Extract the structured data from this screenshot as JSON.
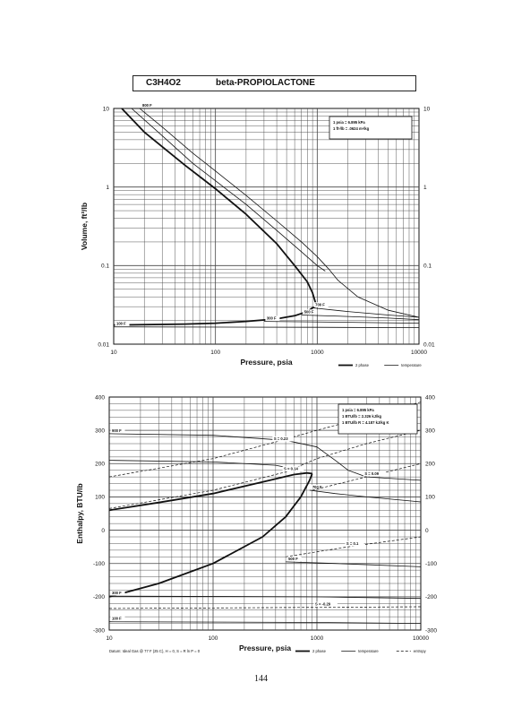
{
  "header": {
    "formula": "C3H4O2",
    "name": "beta-PROPIOLACTONE"
  },
  "page_number": "144",
  "colors": {
    "line": "#111111",
    "grid": "#444444"
  },
  "chart_data": [
    {
      "type": "line",
      "xscale": "log",
      "yscale": "log",
      "xlim": [
        10,
        10000
      ],
      "ylim": [
        0.01,
        10
      ],
      "xlabel": "Pressure,  psia",
      "ylabel": "Volume, ft^3/lb",
      "xticks": [
        "10",
        "100",
        "1000",
        "10000"
      ],
      "yticks_left": [
        "0.01",
        "0.1",
        "1",
        "10"
      ],
      "yticks_right": [
        "0.01",
        "0.1",
        "1",
        "10"
      ],
      "grid": true,
      "conversions": [
        "1 psia  =  6.895 kPa",
        "1 ft^3/lb  =  .0624 m^3/kg"
      ],
      "legend": [
        "2 phase",
        "temperature"
      ],
      "legend_position": "bottom-right",
      "series": [
        {
          "style": "2 phase",
          "curve": "saturated vapor",
          "points": [
            [
              12,
              10
            ],
            [
              20,
              5
            ],
            [
              50,
              1.9
            ],
            [
              100,
              0.95
            ],
            [
              200,
              0.45
            ],
            [
              400,
              0.19
            ],
            [
              600,
              0.1
            ],
            [
              800,
              0.062
            ],
            [
              900,
              0.045
            ],
            [
              960,
              0.034
            ],
            [
              980,
              0.03
            ]
          ]
        },
        {
          "style": "2 phase",
          "curve": "saturated liquid",
          "points": [
            [
              10,
              0.0175
            ],
            [
              50,
              0.018
            ],
            [
              100,
              0.0185
            ],
            [
              200,
              0.0195
            ],
            [
              400,
              0.021
            ],
            [
              600,
              0.023
            ],
            [
              800,
              0.026
            ],
            [
              900,
              0.029
            ],
            [
              960,
              0.03
            ]
          ]
        },
        {
          "style": "temperature",
          "label": "",
          "points": [
            [
              15,
              10
            ],
            [
              30,
              4.5
            ],
            [
              60,
              2
            ],
            [
              100,
              1.2
            ],
            [
              200,
              0.6
            ],
            [
              400,
              0.28
            ],
            [
              700,
              0.15
            ],
            [
              1000,
              0.1
            ],
            [
              1200,
              0.085
            ]
          ]
        },
        {
          "style": "temperature",
          "label": "800 F",
          "points": [
            [
              18,
              10
            ],
            [
              30,
              5.8
            ],
            [
              60,
              2.7
            ],
            [
              100,
              1.6
            ],
            [
              200,
              0.78
            ],
            [
              400,
              0.37
            ],
            [
              700,
              0.2
            ],
            [
              1000,
              0.13
            ],
            [
              1300,
              0.09
            ],
            [
              1600,
              0.065
            ],
            [
              2500,
              0.04
            ],
            [
              5000,
              0.027
            ],
            [
              10000,
              0.022
            ]
          ]
        },
        {
          "style": "temperature",
          "label": "700 F",
          "points": [
            [
              900,
              0.029
            ],
            [
              2000,
              0.026
            ],
            [
              5000,
              0.0235
            ],
            [
              10000,
              0.022
            ]
          ]
        },
        {
          "style": "temperature",
          "label": "500 F",
          "points": [
            [
              700,
              0.0235
            ],
            [
              2000,
              0.0225
            ],
            [
              5000,
              0.0215
            ],
            [
              10000,
              0.0205
            ]
          ]
        },
        {
          "style": "temperature",
          "label": "300 F",
          "points": [
            [
              300,
              0.0195
            ],
            [
              2000,
              0.019
            ],
            [
              10000,
              0.0185
            ]
          ]
        },
        {
          "style": "temperature",
          "label": "100 F",
          "points": [
            [
              10,
              0.0166
            ],
            [
              1000,
              0.0164
            ],
            [
              10000,
              0.0162
            ]
          ]
        }
      ]
    },
    {
      "type": "line",
      "xscale": "log",
      "yscale": "linear",
      "xlim": [
        10,
        10000
      ],
      "ylim": [
        -300,
        400
      ],
      "xlabel": "Pressure,  psia",
      "ylabel": "Enthalpy, BTU/lb",
      "xticks": [
        "10",
        "100",
        "1000",
        "10000"
      ],
      "yticks_left": [
        "-300",
        "-200",
        "-100",
        "0",
        "100",
        "200",
        "300",
        "400"
      ],
      "yticks_right": [
        "-300",
        "-200",
        "-100",
        "0",
        "100",
        "200",
        "300",
        "400"
      ],
      "grid": true,
      "conversions": [
        "1 psia  =  6.895 kPa",
        "1 BTU/lb  =  2.326 kJ/kg",
        "1 BTU/lb R  =  4.187 kJ/kg K"
      ],
      "footnote": "Datum: Ideal Gas @ 77 F (25 C),  H = 0,  S = R ln P = 0",
      "legend": [
        "2 phase",
        "temperature",
        "entropy"
      ],
      "legend_position": "bottom-right",
      "series": [
        {
          "style": "2 phase",
          "curve": "saturated vapor",
          "points": [
            [
              10,
              60
            ],
            [
              30,
              83
            ],
            [
              100,
              110
            ],
            [
              300,
              145
            ],
            [
              600,
              167
            ],
            [
              800,
              172
            ],
            [
              900,
              170
            ]
          ]
        },
        {
          "style": "2 phase",
          "curve": "saturated liquid",
          "points": [
            [
              10,
              -200
            ],
            [
              30,
              -160
            ],
            [
              100,
              -100
            ],
            [
              300,
              -20
            ],
            [
              500,
              40
            ],
            [
              700,
              100
            ],
            [
              850,
              150
            ],
            [
              900,
              170
            ]
          ]
        },
        {
          "style": "temperature",
          "label": "900 F",
          "points": [
            [
              10,
              290
            ],
            [
              100,
              285
            ],
            [
              500,
              270
            ],
            [
              1000,
              250
            ],
            [
              1500,
              210
            ],
            [
              2000,
              180
            ],
            [
              3000,
              160
            ],
            [
              10000,
              150
            ]
          ]
        },
        {
          "style": "temperature",
          "label": "",
          "points": [
            [
              10,
              210
            ],
            [
              100,
              205
            ],
            [
              400,
              195
            ],
            [
              700,
              180
            ]
          ]
        },
        {
          "style": "temperature",
          "label": "700 F",
          "points": [
            [
              850,
              120
            ],
            [
              1500,
              110
            ],
            [
              3000,
              100
            ],
            [
              10000,
              85
            ]
          ]
        },
        {
          "style": "temperature",
          "label": "500 F",
          "points": [
            [
              500,
              -95
            ],
            [
              1500,
              -100
            ],
            [
              10000,
              -110
            ]
          ]
        },
        {
          "style": "temperature",
          "label": "300 F",
          "points": [
            [
              10,
              -198
            ],
            [
              1000,
              -200
            ],
            [
              10000,
              -205
            ]
          ]
        },
        {
          "style": "temperature",
          "label": "100 F",
          "points": [
            [
              10,
              -275
            ],
            [
              1000,
              -277
            ],
            [
              10000,
              -280
            ]
          ]
        },
        {
          "style": "entropy",
          "label": "S = 0.23",
          "points": [
            [
              10,
              160
            ],
            [
              100,
              215
            ],
            [
              400,
              265
            ],
            [
              1000,
              300
            ],
            [
              3000,
              340
            ],
            [
              10000,
              385
            ]
          ]
        },
        {
          "style": "entropy",
          "label": "S = 0.14",
          "points": [
            [
              10,
              65
            ],
            [
              100,
              120
            ],
            [
              500,
              175
            ],
            [
              1000,
              215
            ],
            [
              3000,
              260
            ],
            [
              10000,
              300
            ]
          ]
        },
        {
          "style": "entropy",
          "label": "S = 0.09",
          "points": [
            [
              900,
              120
            ],
            [
              3000,
              160
            ],
            [
              10000,
              200
            ]
          ]
        },
        {
          "style": "entropy",
          "label": "S = 0.1",
          "points": [
            [
              500,
              -80
            ],
            [
              2000,
              -50
            ],
            [
              10000,
              -20
            ]
          ]
        },
        {
          "style": "entropy",
          "label": "S = -0.29",
          "points": [
            [
              10,
              -235
            ],
            [
              1000,
              -232
            ],
            [
              10000,
              -230
            ]
          ]
        }
      ]
    }
  ]
}
